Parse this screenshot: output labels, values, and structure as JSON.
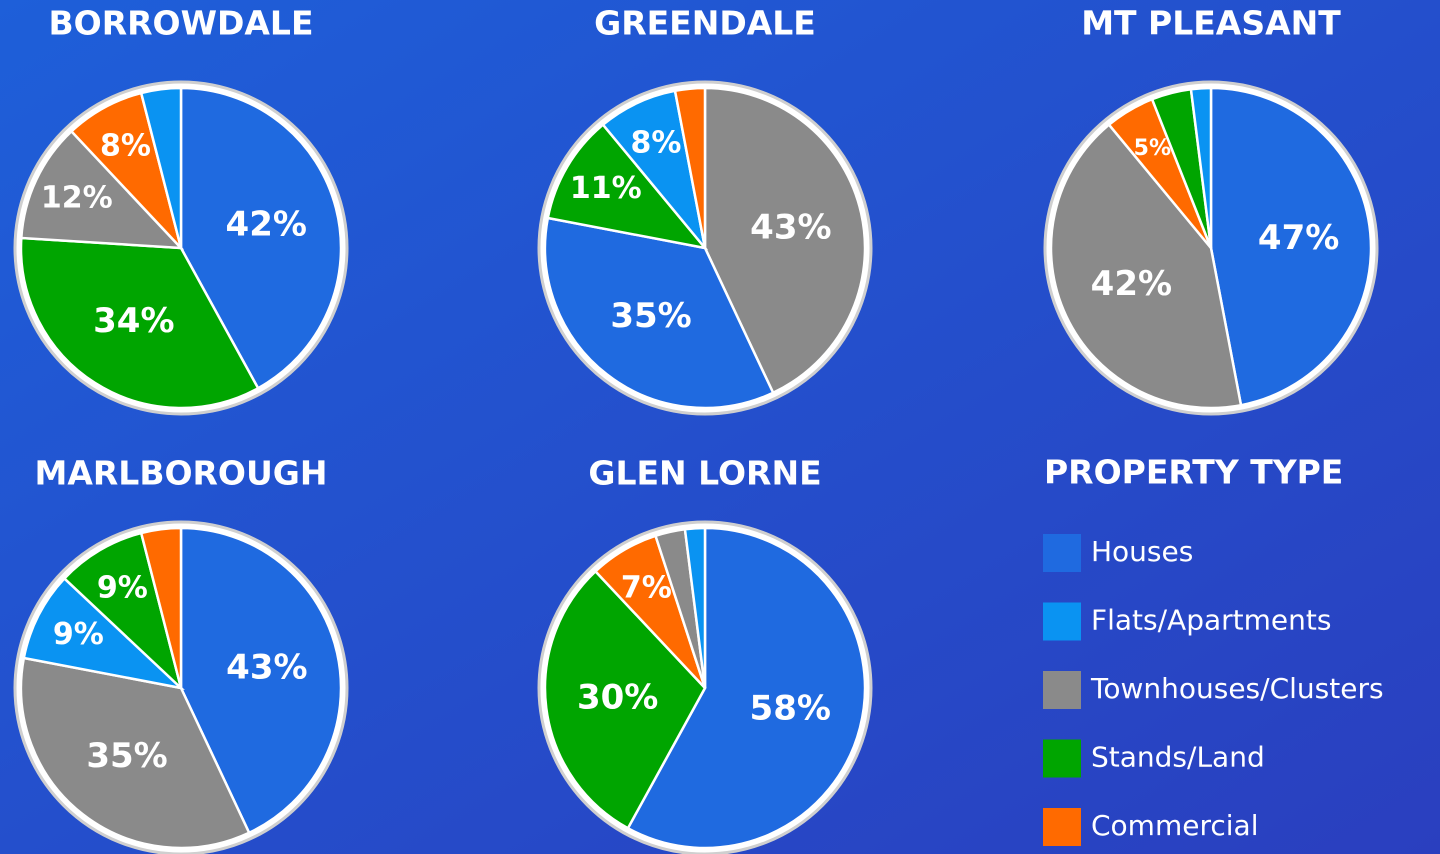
{
  "chart_data": [
    {
      "type": "pie",
      "title": "BORROWDALE",
      "categories": [
        "Houses",
        "Stands/Land",
        "Townhouses/Clusters",
        "Commercial",
        "Flats/Apartments"
      ],
      "values": [
        42,
        34,
        12,
        8,
        4
      ],
      "value_labels": [
        "42%",
        "34%",
        "12%",
        "8%",
        null
      ],
      "colors": [
        "#1f6ae0",
        "#00a500",
        "#8a8a8a",
        "#ff6a00",
        "#0a93f2"
      ]
    },
    {
      "type": "pie",
      "title": "GREENDALE",
      "categories": [
        "Townhouses/Clusters",
        "Houses",
        "Stands/Land",
        "Flats/Apartments",
        "Commercial"
      ],
      "values": [
        43,
        35,
        11,
        8,
        3
      ],
      "value_labels": [
        "43%",
        "35%",
        "11%",
        "8%",
        null
      ],
      "colors": [
        "#8a8a8a",
        "#1f6ae0",
        "#00a500",
        "#0a93f2",
        "#ff6a00"
      ]
    },
    {
      "type": "pie",
      "title": "MT PLEASANT",
      "categories": [
        "Houses",
        "Townhouses/Clusters",
        "Commercial",
        "Stands/Land",
        "Flats/Apartments"
      ],
      "values": [
        47,
        42,
        5,
        4,
        2
      ],
      "value_labels": [
        "47%",
        "42%",
        "5%",
        null,
        null
      ],
      "colors": [
        "#1f6ae0",
        "#8a8a8a",
        "#ff6a00",
        "#00a500",
        "#0a93f2"
      ]
    },
    {
      "type": "pie",
      "title": "MARLBOROUGH",
      "categories": [
        "Houses",
        "Townhouses/Clusters",
        "Flats/Apartments",
        "Stands/Land",
        "Commercial"
      ],
      "values": [
        43,
        35,
        9,
        9,
        4
      ],
      "value_labels": [
        "43%",
        "35%",
        "9%",
        "9%",
        null
      ],
      "colors": [
        "#1f6ae0",
        "#8a8a8a",
        "#0a93f2",
        "#00a500",
        "#ff6a00"
      ]
    },
    {
      "type": "pie",
      "title": "GLEN LORNE",
      "categories": [
        "Houses",
        "Stands/Land",
        "Commercial",
        "Townhouses/Clusters",
        "Flats/Apartments"
      ],
      "values": [
        58,
        30,
        7,
        3,
        2
      ],
      "value_labels": [
        "58%",
        "30%",
        "7%",
        null,
        null
      ],
      "colors": [
        "#1f6ae0",
        "#00a500",
        "#ff6a00",
        "#8a8a8a",
        "#0a93f2"
      ]
    }
  ],
  "legend": {
    "title": "PROPERTY TYPE",
    "labels": [
      "Houses",
      "Flats/Apartments",
      "Townhouses/Clusters",
      "Stands/Land",
      "Commercial"
    ],
    "colors": [
      "#1f6ae0",
      "#0a93f2",
      "#8a8a8a",
      "#00a500",
      "#ff6a00"
    ]
  }
}
